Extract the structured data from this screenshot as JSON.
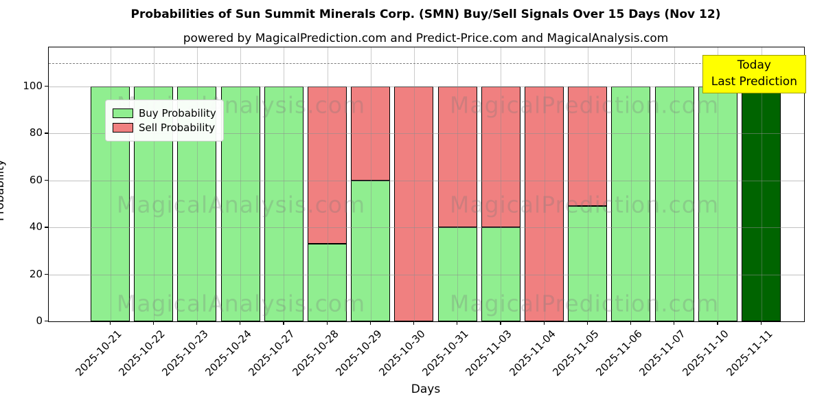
{
  "title": "Probabilities of Sun Summit Minerals Corp. (SMN) Buy/Sell Signals Over 15 Days (Nov 12)",
  "subtitle": "powered by MagicalPrediction.com and Predict-Price.com and MagicalAnalysis.com",
  "watermarks": {
    "left": "MagicalAnalysis.com",
    "right": "MagicalPrediction.com"
  },
  "annotation": {
    "line1": "Today",
    "line2": "Last Prediction",
    "bg_color": "#ffff00",
    "border_color": "#9c9c00"
  },
  "legend": [
    {
      "label": "Buy Probability",
      "color": "#90ee90"
    },
    {
      "label": "Sell Probability",
      "color": "#f08080"
    }
  ],
  "axes": {
    "xlabel": "Days",
    "ylabel": "Probability",
    "yticks": [
      0,
      20,
      40,
      60,
      80,
      100
    ],
    "ylim": [
      0,
      116.7
    ],
    "dashed_line_y": 110,
    "grid": true
  },
  "chart_data": {
    "type": "bar",
    "stacked": true,
    "title": "Probabilities of Sun Summit Minerals Corp. (SMN) Buy/Sell Signals Over 15 Days (Nov 12)",
    "xlabel": "Days",
    "ylabel": "Probability",
    "ylim": [
      0,
      116.7
    ],
    "grid": true,
    "legend_position": "upper left",
    "categories": [
      "2025-10-21",
      "2025-10-22",
      "2025-10-23",
      "2025-10-24",
      "2025-10-27",
      "2025-10-28",
      "2025-10-29",
      "2025-10-30",
      "2025-10-31",
      "2025-11-03",
      "2025-11-04",
      "2025-11-05",
      "2025-11-06",
      "2025-11-07",
      "2025-11-10",
      "2025-11-11"
    ],
    "series": [
      {
        "name": "Buy Probability",
        "color": "#90ee90",
        "values": [
          100,
          100,
          100,
          100,
          100,
          33,
          60,
          0,
          40,
          40,
          0,
          49,
          100,
          100,
          100,
          100
        ]
      },
      {
        "name": "Sell Probability",
        "color": "#f08080",
        "values": [
          0,
          0,
          0,
          0,
          0,
          67,
          40,
          100,
          60,
          60,
          100,
          51,
          0,
          0,
          0,
          0
        ]
      }
    ],
    "today_index": 15,
    "today_color": "#006400"
  }
}
